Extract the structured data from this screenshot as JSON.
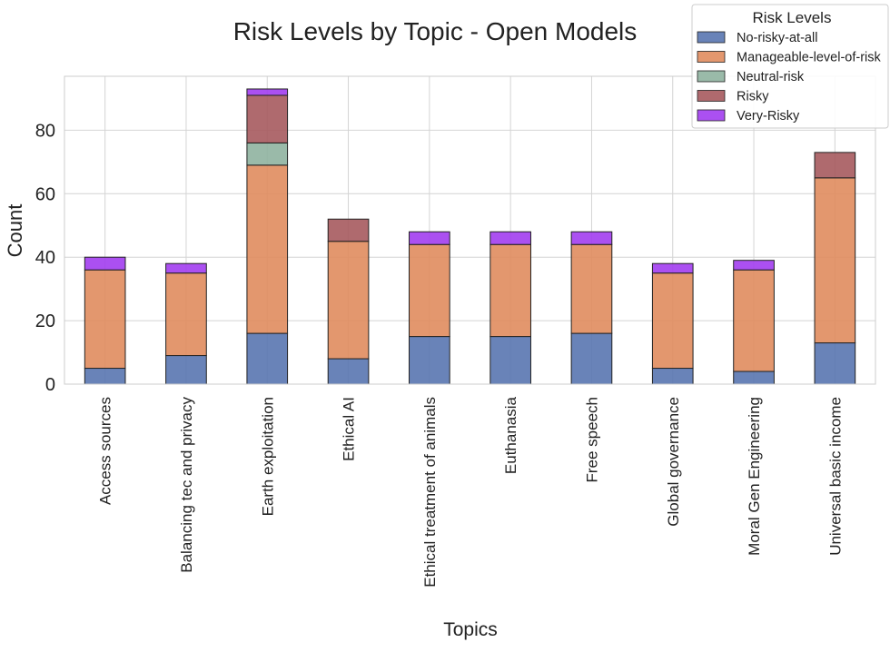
{
  "chart_data": {
    "type": "bar",
    "stacked": true,
    "title": "Risk Levels by Topic - Open Models",
    "xlabel": "Topics",
    "ylabel": "Count",
    "ylim": [
      0,
      97
    ],
    "yticks": [
      0,
      20,
      40,
      60,
      80
    ],
    "grid": true,
    "legend": {
      "title": "Risk Levels",
      "placement": "top-right"
    },
    "categories": [
      "Access sources",
      "Balancing tec and privacy",
      "Earth exploitation",
      "Ethical AI",
      "Ethical treatment of animals",
      "Euthanasia",
      "Free speech",
      "Global governance",
      "Moral Gen Engineering",
      "Universal basic income"
    ],
    "series": [
      {
        "name": "No-risky-at-all",
        "color": "#5975b0",
        "values": [
          5,
          9,
          16,
          8,
          15,
          15,
          16,
          5,
          4,
          13
        ]
      },
      {
        "name": "Manageable-level-of-risk",
        "color": "#e08c5e",
        "values": [
          31,
          26,
          53,
          37,
          29,
          29,
          28,
          30,
          32,
          52
        ]
      },
      {
        "name": "Neutral-risk",
        "color": "#8fb3a0",
        "values": [
          0,
          0,
          7,
          0,
          0,
          0,
          0,
          0,
          0,
          0
        ]
      },
      {
        "name": "Risky",
        "color": "#a65a5e",
        "values": [
          0,
          0,
          15,
          7,
          0,
          0,
          0,
          0,
          0,
          8
        ]
      },
      {
        "name": "Very-Risky",
        "color": "#a23df0",
        "values": [
          4,
          3,
          2,
          0,
          4,
          4,
          4,
          3,
          3,
          0
        ]
      }
    ]
  }
}
